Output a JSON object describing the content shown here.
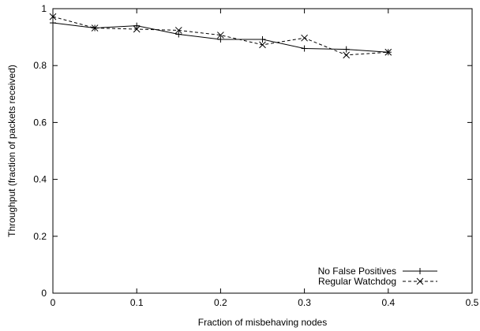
{
  "chart_data": {
    "type": "line",
    "title": "",
    "xlabel": "Fraction of misbehaving nodes",
    "ylabel": "Throughput (fraction of packets received)",
    "xlim": [
      0,
      0.5
    ],
    "ylim": [
      0,
      1
    ],
    "xticks": [
      0,
      0.1,
      0.2,
      0.3,
      0.4,
      0.5
    ],
    "xtick_labels": [
      "0",
      "0.1",
      "0.2",
      "0.3",
      "0.4",
      "0.5"
    ],
    "yticks": [
      0,
      0.2,
      0.4,
      0.6,
      0.8,
      1
    ],
    "ytick_labels": [
      "0",
      "0.2",
      "0.4",
      "0.6",
      "0.8",
      "1"
    ],
    "grid": false,
    "legend_position": "bottom-right",
    "x": [
      0,
      0.05,
      0.1,
      0.15,
      0.2,
      0.25,
      0.3,
      0.35,
      0.4
    ],
    "series": [
      {
        "name": "No False Positives",
        "line_style": "solid",
        "marker": "plus",
        "color": "#000000",
        "values": [
          0.95,
          0.932,
          0.94,
          0.91,
          0.892,
          0.892,
          0.86,
          0.857,
          0.847
        ]
      },
      {
        "name": "Regular Watchdog",
        "line_style": "dashed",
        "marker": "cross",
        "color": "#000000",
        "values": [
          0.972,
          0.932,
          0.928,
          0.924,
          0.907,
          0.873,
          0.897,
          0.837,
          0.847
        ]
      }
    ]
  }
}
